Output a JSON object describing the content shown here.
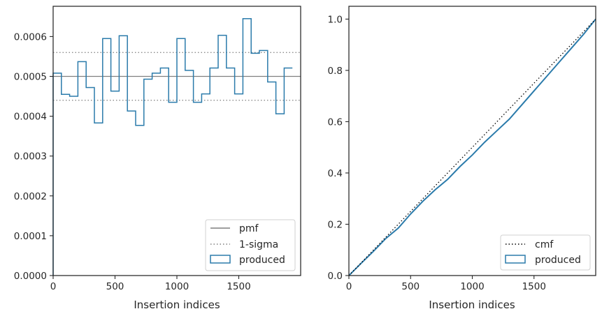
{
  "chart_data": [
    {
      "type": "histogram-step",
      "xlabel": "Insertion indices",
      "ylabel": "",
      "xlim": [
        0,
        2000
      ],
      "ylim": [
        0,
        0.000676
      ],
      "xticks": [
        0,
        500,
        1000,
        1500
      ],
      "xtick_labels": [
        "0",
        "500",
        "1000",
        "1500"
      ],
      "yticks": [
        0,
        0.0001,
        0.0002,
        0.0003,
        0.0004,
        0.0005,
        0.0006
      ],
      "ytick_labels": [
        "0.0000",
        "0.0001",
        "0.0002",
        "0.0003",
        "0.0004",
        "0.0005",
        "0.0006"
      ],
      "grid": false,
      "legend_position": "lower-right",
      "lines": {
        "pmf": {
          "name": "pmf",
          "y": 0.0005,
          "color": "#7f7f7f",
          "style": "solid"
        },
        "sigma_upper": {
          "name": "1-sigma",
          "y": 0.00056,
          "color": "#7f7f7f",
          "style": "dotted"
        },
        "sigma_lower": {
          "name": "1-sigma",
          "y": 0.00044,
          "color": "#7f7f7f",
          "style": "dotted"
        }
      },
      "series": [
        {
          "name": "produced",
          "color": "#2b7bab",
          "bin_width": 66.67,
          "values": [
            0.000508,
            0.000455,
            0.00045,
            0.000537,
            0.000472,
            0.000383,
            0.000595,
            0.000463,
            0.000602,
            0.000413,
            0.000377,
            0.000493,
            0.000508,
            0.000521,
            0.000435,
            0.000595,
            0.000515,
            0.000435,
            0.000456,
            0.000521,
            0.000603,
            0.000521,
            0.000456,
            0.000645,
            0.000558,
            0.000565,
            0.000486,
            0.000406,
            0.000521
          ]
        }
      ],
      "legend": [
        {
          "label": "pmf",
          "kind": "line-solid"
        },
        {
          "label": "1-sigma",
          "kind": "line-dotted"
        },
        {
          "label": "produced",
          "kind": "patch"
        }
      ]
    },
    {
      "type": "line",
      "xlabel": "Insertion indices",
      "ylabel": "",
      "xlim": [
        0,
        2000
      ],
      "ylim": [
        0,
        1.05
      ],
      "xticks": [
        0,
        500,
        1000,
        1500
      ],
      "xtick_labels": [
        "0",
        "500",
        "1000",
        "1500"
      ],
      "yticks": [
        0,
        0.2,
        0.4,
        0.6,
        0.8,
        1.0
      ],
      "ytick_labels": [
        "0.0",
        "0.2",
        "0.4",
        "0.6",
        "0.8",
        "1.0"
      ],
      "grid": false,
      "legend_position": "lower-right",
      "series": [
        {
          "name": "cmf",
          "color": "#000000",
          "style": "dotted",
          "x": [
            0,
            2000
          ],
          "y": [
            0,
            1.0
          ]
        },
        {
          "name": "produced",
          "color": "#2b7bab",
          "style": "solid",
          "x": [
            0,
            100,
            200,
            300,
            400,
            500,
            600,
            700,
            800,
            900,
            1000,
            1100,
            1200,
            1300,
            1400,
            1500,
            1600,
            1700,
            1800,
            1900,
            2000
          ],
          "y": [
            0,
            0.048,
            0.095,
            0.145,
            0.185,
            0.24,
            0.29,
            0.335,
            0.375,
            0.425,
            0.47,
            0.52,
            0.565,
            0.61,
            0.665,
            0.72,
            0.775,
            0.83,
            0.885,
            0.94,
            1.0
          ]
        }
      ],
      "legend": [
        {
          "label": "cmf",
          "kind": "line-dotted"
        },
        {
          "label": "produced",
          "kind": "patch"
        }
      ]
    }
  ]
}
